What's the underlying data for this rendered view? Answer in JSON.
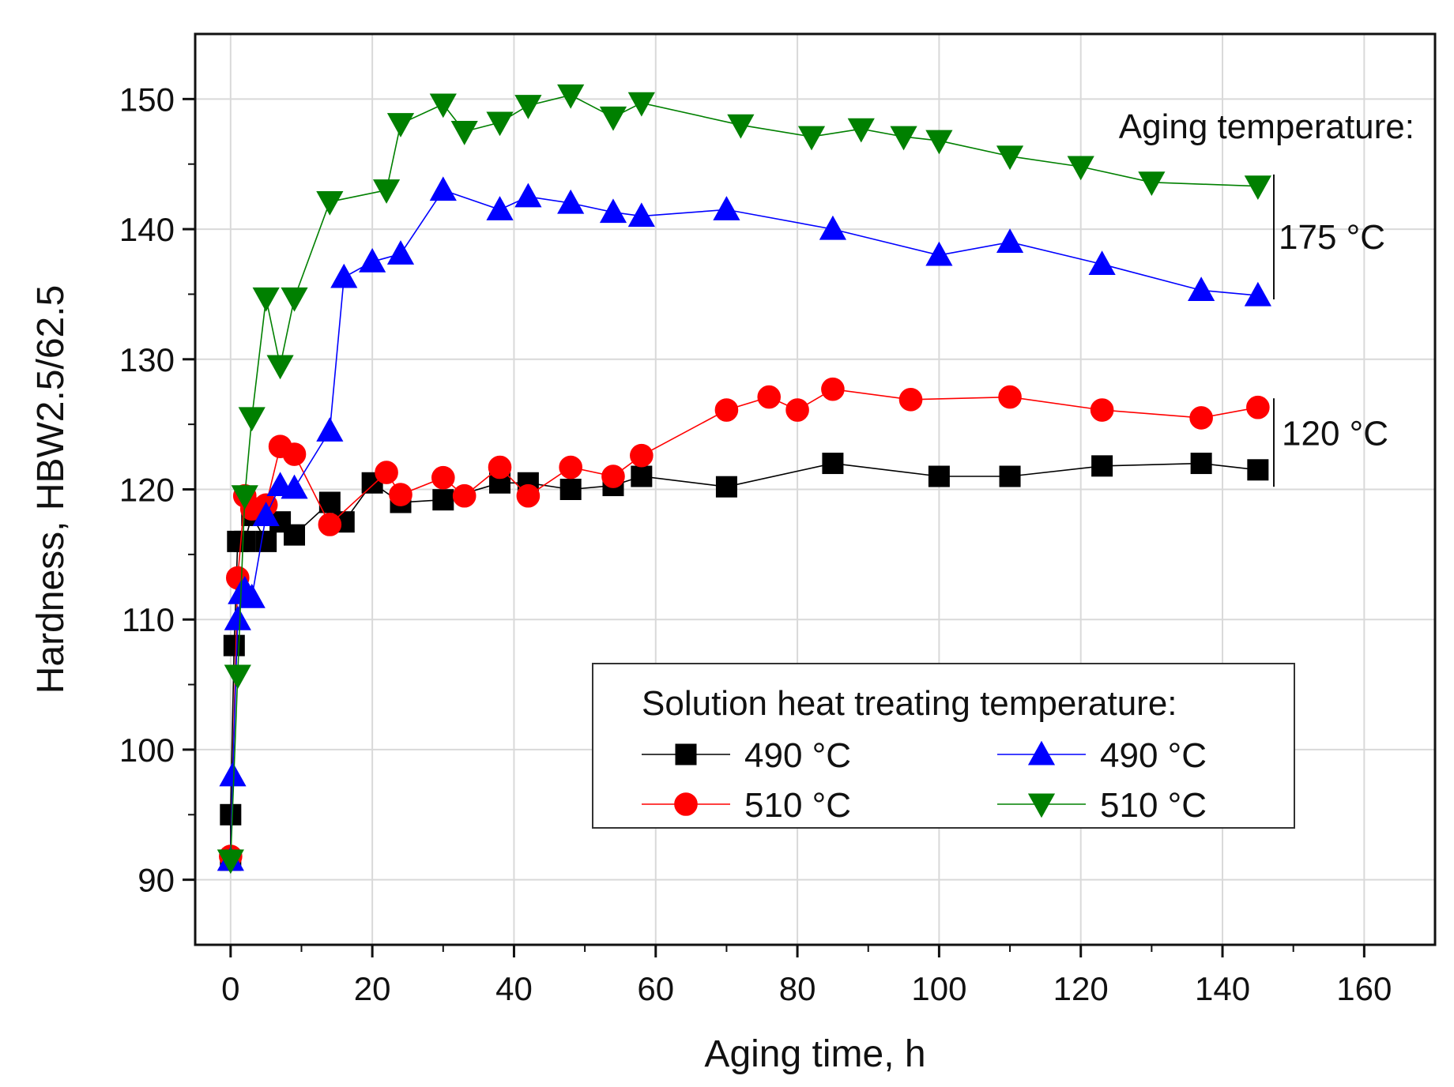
{
  "chart_data": {
    "type": "line",
    "title": "",
    "xlabel": "Aging time, h",
    "ylabel": "Hardness, HBW2.5/62.5",
    "xlim": [
      -5,
      170
    ],
    "ylim": [
      85,
      155
    ],
    "x_ticks": [
      0,
      20,
      40,
      60,
      80,
      100,
      120,
      140,
      160
    ],
    "y_ticks": [
      90,
      100,
      110,
      120,
      130,
      140,
      150
    ],
    "grid": true,
    "legend": {
      "title": "Solution heat treating temperature:",
      "position": "lower-right"
    },
    "annotations": {
      "aging_title": "Aging temperature:",
      "group_175": "175 °C",
      "group_120": "120 °C"
    },
    "series": [
      {
        "name": "490 °C",
        "aging": "120 °C",
        "color": "#000000",
        "marker": "square",
        "points": [
          [
            0,
            91.5
          ],
          [
            0,
            95
          ],
          [
            0.5,
            108
          ],
          [
            1,
            116
          ],
          [
            2,
            116
          ],
          [
            3,
            118
          ],
          [
            5,
            116
          ],
          [
            7,
            117.5
          ],
          [
            9,
            116.5
          ],
          [
            14,
            119
          ],
          [
            16,
            117.5
          ],
          [
            20,
            120.5
          ],
          [
            24,
            119
          ],
          [
            30,
            119.2
          ],
          [
            38,
            120.5
          ],
          [
            42,
            120.5
          ],
          [
            48,
            120
          ],
          [
            54,
            120.3
          ],
          [
            58,
            121
          ],
          [
            70,
            120.2
          ],
          [
            85,
            122
          ],
          [
            100,
            121
          ],
          [
            110,
            121
          ],
          [
            123,
            121.8
          ],
          [
            137,
            122
          ],
          [
            145,
            121.5
          ]
        ]
      },
      {
        "name": "510 °C",
        "aging": "120 °C",
        "color": "#ff0000",
        "marker": "circle",
        "points": [
          [
            0,
            91.8
          ],
          [
            1,
            113.2
          ],
          [
            2,
            119.5
          ],
          [
            3,
            118.5
          ],
          [
            4,
            118.5
          ],
          [
            5,
            118.8
          ],
          [
            7,
            123.3
          ],
          [
            9,
            122.7
          ],
          [
            14,
            117.3
          ],
          [
            22,
            121.3
          ],
          [
            24,
            119.6
          ],
          [
            30,
            120.9
          ],
          [
            33,
            119.5
          ],
          [
            38,
            121.7
          ],
          [
            42,
            119.5
          ],
          [
            48,
            121.7
          ],
          [
            54,
            121
          ],
          [
            58,
            122.6
          ],
          [
            70,
            126.1
          ],
          [
            76,
            127.1
          ],
          [
            80,
            126.1
          ],
          [
            85,
            127.7
          ],
          [
            96,
            126.9
          ],
          [
            110,
            127.1
          ],
          [
            123,
            126.1
          ],
          [
            137,
            125.5
          ],
          [
            145,
            126.3
          ]
        ]
      },
      {
        "name": "490 °C",
        "aging": "175 °C",
        "color": "#0000ff",
        "marker": "triangle-up",
        "points": [
          [
            0,
            91.5
          ],
          [
            0.3,
            98
          ],
          [
            1,
            110
          ],
          [
            1.5,
            112
          ],
          [
            2,
            112.3
          ],
          [
            3,
            111.7
          ],
          [
            5,
            118
          ],
          [
            7,
            120.3
          ],
          [
            9,
            120.1
          ],
          [
            14,
            124.5
          ],
          [
            16,
            136.3
          ],
          [
            20,
            137.5
          ],
          [
            24,
            138.1
          ],
          [
            30,
            143
          ],
          [
            38,
            141.5
          ],
          [
            42,
            142.5
          ],
          [
            48,
            142
          ],
          [
            54,
            141.3
          ],
          [
            58,
            141
          ],
          [
            70,
            141.5
          ],
          [
            85,
            140
          ],
          [
            100,
            138
          ],
          [
            110,
            139
          ],
          [
            123,
            137.3
          ],
          [
            137,
            135.3
          ],
          [
            145,
            134.9
          ]
        ]
      },
      {
        "name": "510 °C",
        "aging": "175 °C",
        "color": "#008000",
        "marker": "triangle-down",
        "points": [
          [
            0,
            91.5
          ],
          [
            1,
            105.7
          ],
          [
            2,
            119.5
          ],
          [
            3,
            125.5
          ],
          [
            5,
            134.7
          ],
          [
            7,
            129.5
          ],
          [
            9,
            134.7
          ],
          [
            14,
            142.1
          ],
          [
            22,
            143
          ],
          [
            24,
            148.1
          ],
          [
            30,
            149.6
          ],
          [
            33,
            147.5
          ],
          [
            38,
            148.2
          ],
          [
            42,
            149.5
          ],
          [
            48,
            150.3
          ],
          [
            54,
            148.6
          ],
          [
            58,
            149.7
          ],
          [
            72,
            148
          ],
          [
            82,
            147.1
          ],
          [
            89,
            147.7
          ],
          [
            95,
            147.1
          ],
          [
            100,
            146.8
          ],
          [
            110,
            145.6
          ],
          [
            120,
            144.8
          ],
          [
            130,
            143.6
          ],
          [
            145,
            143.3
          ]
        ]
      }
    ]
  }
}
